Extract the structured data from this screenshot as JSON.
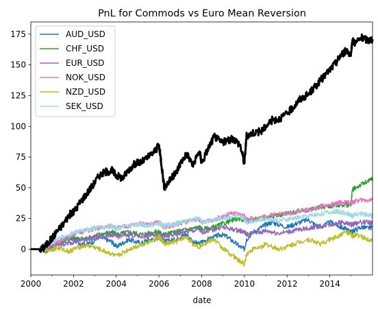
{
  "chart_data": {
    "type": "line",
    "title": "PnL for Commods vs Euro Mean Reversion",
    "xlabel": "date",
    "ylabel": "",
    "xlim": [
      2000.0,
      2016.0
    ],
    "ylim": [
      -21,
      185
    ],
    "x_ticks": [
      2000,
      2002,
      2004,
      2006,
      2008,
      2010,
      2012,
      2014
    ],
    "x_tick_labels": [
      "2000",
      "2002",
      "2004",
      "2006",
      "2008",
      "2010",
      "2012",
      "2014"
    ],
    "y_ticks": [
      0,
      25,
      50,
      75,
      100,
      125,
      150,
      175
    ],
    "y_tick_labels": [
      "0",
      "25",
      "50",
      "75",
      "100",
      "125",
      "150",
      "175"
    ],
    "grid": false,
    "legend_position": "upper-left",
    "total": {
      "color": "#000000",
      "x": [
        2000.0,
        2000.5,
        2000.7,
        2001.0,
        2001.2,
        2001.5,
        2001.8,
        2002.0,
        2002.3,
        2002.6,
        2002.9,
        2003.2,
        2003.5,
        2003.8,
        2004.0,
        2004.3,
        2004.6,
        2004.9,
        2005.2,
        2005.5,
        2005.8,
        2006.0,
        2006.1,
        2006.25,
        2006.5,
        2006.8,
        2007.0,
        2007.3,
        2007.6,
        2007.9,
        2008.0,
        2008.3,
        2008.6,
        2008.9,
        2009.2,
        2009.5,
        2009.8,
        2010.0,
        2010.1,
        2010.4,
        2010.8,
        2011.0,
        2011.3,
        2011.6,
        2012.0,
        2012.3,
        2012.6,
        2013.0,
        2013.3,
        2013.6,
        2014.0,
        2014.3,
        2014.5,
        2014.8,
        2015.0,
        2015.05,
        2015.2,
        2015.5,
        2015.8,
        2016.0
      ],
      "y": [
        0,
        0,
        3,
        9,
        14,
        20,
        28,
        30,
        38,
        45,
        52,
        60,
        63,
        64,
        60,
        58,
        65,
        70,
        71,
        75,
        80,
        84,
        72,
        50,
        56,
        62,
        70,
        78,
        68,
        80,
        70,
        82,
        92,
        87,
        88,
        90,
        85,
        70,
        92,
        95,
        96,
        100,
        105,
        106,
        110,
        116,
        122,
        126,
        132,
        138,
        146,
        152,
        158,
        162,
        158,
        170,
        168,
        172,
        170,
        171
      ]
    },
    "series": [
      {
        "name": "AUD_USD",
        "color": "#1f77b4",
        "y": [
          0,
          0,
          -2,
          2,
          5,
          8,
          10,
          8,
          5,
          4,
          6,
          10,
          8,
          6,
          2,
          5,
          8,
          6,
          5,
          8,
          8,
          10,
          8,
          6,
          7,
          8,
          10,
          12,
          6,
          4,
          6,
          8,
          10,
          12,
          10,
          6,
          2,
          0,
          8,
          14,
          18,
          20,
          22,
          20,
          18,
          20,
          22,
          24,
          20,
          18,
          22,
          20,
          18,
          16,
          14,
          14,
          16,
          18,
          17,
          18
        ]
      },
      {
        "name": "CHF_USD",
        "color": "#2ca02c",
        "y": [
          0,
          0,
          1,
          3,
          5,
          6,
          8,
          10,
          8,
          9,
          10,
          12,
          13,
          14,
          12,
          13,
          14,
          13,
          12,
          13,
          14,
          14,
          13,
          12,
          13,
          14,
          15,
          16,
          17,
          18,
          16,
          17,
          18,
          20,
          22,
          24,
          25,
          24,
          23,
          24,
          25,
          26,
          27,
          28,
          29,
          30,
          31,
          32,
          33,
          34,
          35,
          36,
          36,
          36,
          37,
          48,
          50,
          53,
          55,
          58
        ]
      },
      {
        "name": "EUR_USD",
        "color": "#9467bd",
        "y": [
          0,
          0,
          1,
          2,
          3,
          4,
          5,
          6,
          7,
          8,
          9,
          10,
          11,
          12,
          10,
          11,
          12,
          11,
          10,
          11,
          12,
          12,
          11,
          10,
          11,
          12,
          13,
          14,
          15,
          16,
          14,
          15,
          16,
          18,
          17,
          16,
          15,
          14,
          12,
          13,
          14,
          15,
          14,
          13,
          14,
          15,
          16,
          17,
          18,
          19,
          20,
          21,
          22,
          21,
          20,
          20,
          21,
          22,
          22,
          21
        ]
      },
      {
        "name": "NOK_USD",
        "color": "#e377c2",
        "y": [
          0,
          0,
          2,
          4,
          6,
          8,
          10,
          12,
          14,
          15,
          16,
          17,
          18,
          19,
          17,
          18,
          19,
          20,
          21,
          20,
          21,
          22,
          20,
          18,
          19,
          20,
          21,
          22,
          23,
          24,
          22,
          23,
          24,
          26,
          28,
          29,
          28,
          27,
          24,
          25,
          26,
          27,
          28,
          29,
          29,
          30,
          31,
          32,
          33,
          35,
          36,
          37,
          38,
          38,
          38,
          38,
          39,
          40,
          40,
          40
        ]
      },
      {
        "name": "NZD_USD",
        "color": "#bcbd22",
        "y": [
          0,
          0,
          -1,
          0,
          1,
          0,
          -2,
          0,
          2,
          3,
          2,
          0,
          -2,
          -4,
          -6,
          -3,
          0,
          2,
          4,
          6,
          8,
          10,
          8,
          4,
          5,
          6,
          8,
          10,
          4,
          2,
          4,
          6,
          8,
          2,
          -2,
          -6,
          -10,
          -12,
          -4,
          0,
          2,
          4,
          2,
          0,
          2,
          4,
          6,
          8,
          6,
          4,
          8,
          10,
          12,
          14,
          12,
          10,
          12,
          10,
          8,
          8
        ]
      },
      {
        "name": "SEK_USD",
        "color": "#9edae5",
        "y": [
          0,
          0,
          2,
          5,
          8,
          10,
          12,
          14,
          15,
          16,
          17,
          18,
          18,
          19,
          17,
          18,
          19,
          20,
          20,
          19,
          20,
          21,
          20,
          19,
          20,
          21,
          22,
          23,
          24,
          25,
          22,
          23,
          24,
          25,
          26,
          27,
          26,
          25,
          22,
          23,
          24,
          25,
          24,
          23,
          24,
          25,
          26,
          27,
          28,
          29,
          30,
          31,
          30,
          29,
          28,
          27,
          28,
          29,
          28,
          27
        ]
      }
    ]
  }
}
